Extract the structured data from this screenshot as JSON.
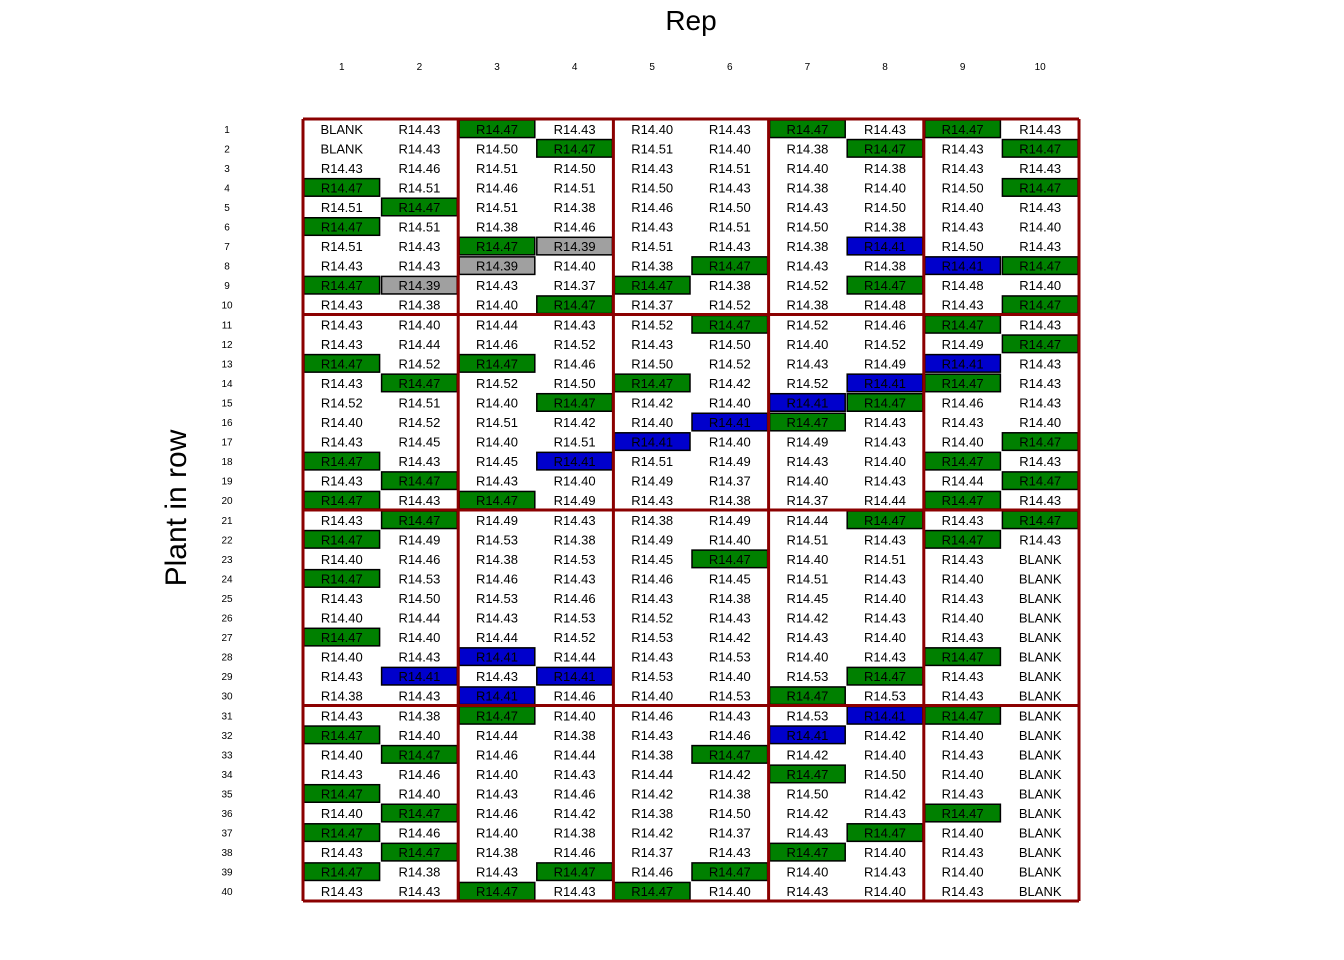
{
  "chart_data": {
    "type": "heatmap",
    "title": "Rep",
    "xlabel": "",
    "ylabel": "Plant in row",
    "columns": [
      "1",
      "2",
      "3",
      "4",
      "5",
      "6",
      "7",
      "8",
      "9",
      "10"
    ],
    "rows": [
      "1",
      "2",
      "3",
      "4",
      "5",
      "6",
      "7",
      "8",
      "9",
      "10",
      "11",
      "12",
      "13",
      "14",
      "15",
      "16",
      "17",
      "18",
      "19",
      "20",
      "21",
      "22",
      "23",
      "24",
      "25",
      "26",
      "27",
      "28",
      "29",
      "30",
      "31",
      "32",
      "33",
      "34",
      "35",
      "36",
      "37",
      "38",
      "39",
      "40"
    ],
    "highlight_colors": {
      "R14.47": "#008000",
      "R14.41": "#0000cc",
      "R14.39": "#a0a0a0"
    },
    "border_color": "#8b0000",
    "block_rows": 10,
    "block_cols": 2,
    "cells": [
      [
        "BLANK",
        "R14.43",
        "R14.47",
        "R14.43",
        "R14.40",
        "R14.43",
        "R14.47",
        "R14.43",
        "R14.47",
        "R14.43"
      ],
      [
        "BLANK",
        "R14.43",
        "R14.50",
        "R14.47",
        "R14.51",
        "R14.40",
        "R14.38",
        "R14.47",
        "R14.43",
        "R14.47"
      ],
      [
        "R14.43",
        "R14.46",
        "R14.51",
        "R14.50",
        "R14.43",
        "R14.51",
        "R14.40",
        "R14.38",
        "R14.43",
        "R14.43"
      ],
      [
        "R14.47",
        "R14.51",
        "R14.46",
        "R14.51",
        "R14.50",
        "R14.43",
        "R14.38",
        "R14.40",
        "R14.50",
        "R14.47"
      ],
      [
        "R14.51",
        "R14.47",
        "R14.51",
        "R14.38",
        "R14.46",
        "R14.50",
        "R14.43",
        "R14.50",
        "R14.40",
        "R14.43"
      ],
      [
        "R14.47",
        "R14.51",
        "R14.38",
        "R14.46",
        "R14.43",
        "R14.51",
        "R14.50",
        "R14.38",
        "R14.43",
        "R14.40"
      ],
      [
        "R14.51",
        "R14.43",
        "R14.47",
        "R14.39",
        "R14.51",
        "R14.43",
        "R14.38",
        "R14.41",
        "R14.50",
        "R14.43"
      ],
      [
        "R14.43",
        "R14.43",
        "R14.39",
        "R14.40",
        "R14.38",
        "R14.47",
        "R14.43",
        "R14.38",
        "R14.41",
        "R14.47"
      ],
      [
        "R14.47",
        "R14.39",
        "R14.43",
        "R14.37",
        "R14.47",
        "R14.38",
        "R14.52",
        "R14.47",
        "R14.48",
        "R14.40"
      ],
      [
        "R14.43",
        "R14.38",
        "R14.40",
        "R14.47",
        "R14.37",
        "R14.52",
        "R14.38",
        "R14.48",
        "R14.43",
        "R14.47"
      ],
      [
        "R14.43",
        "R14.40",
        "R14.44",
        "R14.43",
        "R14.52",
        "R14.47",
        "R14.52",
        "R14.46",
        "R14.47",
        "R14.43"
      ],
      [
        "R14.43",
        "R14.44",
        "R14.46",
        "R14.52",
        "R14.43",
        "R14.50",
        "R14.40",
        "R14.52",
        "R14.49",
        "R14.47"
      ],
      [
        "R14.47",
        "R14.52",
        "R14.47",
        "R14.46",
        "R14.50",
        "R14.52",
        "R14.43",
        "R14.49",
        "R14.41",
        "R14.43"
      ],
      [
        "R14.43",
        "R14.47",
        "R14.52",
        "R14.50",
        "R14.47",
        "R14.42",
        "R14.52",
        "R14.41",
        "R14.47",
        "R14.43"
      ],
      [
        "R14.52",
        "R14.51",
        "R14.40",
        "R14.47",
        "R14.42",
        "R14.40",
        "R14.41",
        "R14.47",
        "R14.46",
        "R14.43"
      ],
      [
        "R14.40",
        "R14.52",
        "R14.51",
        "R14.42",
        "R14.40",
        "R14.41",
        "R14.47",
        "R14.43",
        "R14.43",
        "R14.40"
      ],
      [
        "R14.43",
        "R14.45",
        "R14.40",
        "R14.51",
        "R14.41",
        "R14.40",
        "R14.49",
        "R14.43",
        "R14.40",
        "R14.47"
      ],
      [
        "R14.47",
        "R14.43",
        "R14.45",
        "R14.41",
        "R14.51",
        "R14.49",
        "R14.43",
        "R14.40",
        "R14.47",
        "R14.43"
      ],
      [
        "R14.43",
        "R14.47",
        "R14.43",
        "R14.40",
        "R14.49",
        "R14.37",
        "R14.40",
        "R14.43",
        "R14.44",
        "R14.47"
      ],
      [
        "R14.47",
        "R14.43",
        "R14.47",
        "R14.49",
        "R14.43",
        "R14.38",
        "R14.37",
        "R14.44",
        "R14.47",
        "R14.43"
      ],
      [
        "R14.43",
        "R14.47",
        "R14.49",
        "R14.43",
        "R14.38",
        "R14.49",
        "R14.44",
        "R14.47",
        "R14.43",
        "R14.47"
      ],
      [
        "R14.47",
        "R14.49",
        "R14.53",
        "R14.38",
        "R14.49",
        "R14.40",
        "R14.51",
        "R14.43",
        "R14.47",
        "R14.43"
      ],
      [
        "R14.40",
        "R14.46",
        "R14.38",
        "R14.53",
        "R14.45",
        "R14.47",
        "R14.40",
        "R14.51",
        "R14.43",
        "BLANK"
      ],
      [
        "R14.47",
        "R14.53",
        "R14.46",
        "R14.43",
        "R14.46",
        "R14.45",
        "R14.51",
        "R14.43",
        "R14.40",
        "BLANK"
      ],
      [
        "R14.43",
        "R14.50",
        "R14.53",
        "R14.46",
        "R14.43",
        "R14.38",
        "R14.45",
        "R14.40",
        "R14.43",
        "BLANK"
      ],
      [
        "R14.40",
        "R14.44",
        "R14.43",
        "R14.53",
        "R14.52",
        "R14.43",
        "R14.42",
        "R14.43",
        "R14.40",
        "BLANK"
      ],
      [
        "R14.47",
        "R14.40",
        "R14.44",
        "R14.52",
        "R14.53",
        "R14.42",
        "R14.43",
        "R14.40",
        "R14.43",
        "BLANK"
      ],
      [
        "R14.40",
        "R14.43",
        "R14.41",
        "R14.44",
        "R14.43",
        "R14.53",
        "R14.40",
        "R14.43",
        "R14.47",
        "BLANK"
      ],
      [
        "R14.43",
        "R14.41",
        "R14.43",
        "R14.41",
        "R14.53",
        "R14.40",
        "R14.53",
        "R14.47",
        "R14.43",
        "BLANK"
      ],
      [
        "R14.38",
        "R14.43",
        "R14.41",
        "R14.46",
        "R14.40",
        "R14.53",
        "R14.47",
        "R14.53",
        "R14.43",
        "BLANK"
      ],
      [
        "R14.43",
        "R14.38",
        "R14.47",
        "R14.40",
        "R14.46",
        "R14.43",
        "R14.53",
        "R14.41",
        "R14.47",
        "BLANK"
      ],
      [
        "R14.47",
        "R14.40",
        "R14.44",
        "R14.38",
        "R14.43",
        "R14.46",
        "R14.41",
        "R14.42",
        "R14.40",
        "BLANK"
      ],
      [
        "R14.40",
        "R14.47",
        "R14.46",
        "R14.44",
        "R14.38",
        "R14.47",
        "R14.42",
        "R14.40",
        "R14.43",
        "BLANK"
      ],
      [
        "R14.43",
        "R14.46",
        "R14.40",
        "R14.43",
        "R14.44",
        "R14.42",
        "R14.47",
        "R14.50",
        "R14.40",
        "BLANK"
      ],
      [
        "R14.47",
        "R14.40",
        "R14.43",
        "R14.46",
        "R14.42",
        "R14.38",
        "R14.50",
        "R14.42",
        "R14.43",
        "BLANK"
      ],
      [
        "R14.40",
        "R14.47",
        "R14.46",
        "R14.42",
        "R14.38",
        "R14.50",
        "R14.42",
        "R14.43",
        "R14.47",
        "BLANK"
      ],
      [
        "R14.47",
        "R14.46",
        "R14.40",
        "R14.38",
        "R14.42",
        "R14.37",
        "R14.43",
        "R14.47",
        "R14.40",
        "BLANK"
      ],
      [
        "R14.43",
        "R14.47",
        "R14.38",
        "R14.46",
        "R14.37",
        "R14.43",
        "R14.47",
        "R14.40",
        "R14.43",
        "BLANK"
      ],
      [
        "R14.47",
        "R14.38",
        "R14.43",
        "R14.47",
        "R14.46",
        "R14.47",
        "R14.40",
        "R14.43",
        "R14.40",
        "BLANK"
      ],
      [
        "R14.43",
        "R14.43",
        "R14.47",
        "R14.43",
        "R14.47",
        "R14.40",
        "R14.43",
        "R14.40",
        "R14.43",
        "BLANK"
      ]
    ]
  }
}
